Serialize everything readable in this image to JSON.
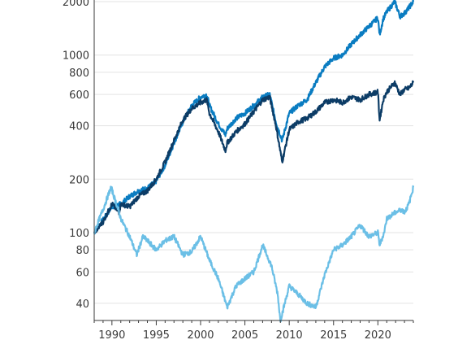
{
  "chart_data": {
    "type": "line",
    "title": "",
    "xlabel": "",
    "ylabel": "",
    "x_scale": "linear",
    "y_scale": "log",
    "xlim": [
      1988,
      2024
    ],
    "ylim": [
      32,
      2000
    ],
    "grid": "horizontal",
    "x_ticks": [
      1990,
      1995,
      2000,
      2005,
      2010,
      2015,
      2020
    ],
    "x_tick_labels": [
      "1990",
      "1995",
      "2000",
      "2005",
      "2010",
      "2015",
      "2020"
    ],
    "y_ticks": [
      40,
      60,
      80,
      100,
      200,
      400,
      600,
      800,
      1000,
      2000
    ],
    "y_tick_labels": [
      "40",
      "60",
      "80",
      "100",
      "200",
      "400",
      "600",
      "800",
      "1000",
      "2000"
    ],
    "series": [
      {
        "color": "#0a7cc1",
        "x": [
          1988,
          1989,
          1990,
          1991,
          1992,
          1993,
          1994,
          1995,
          1996,
          1997,
          1998,
          1999,
          2000,
          2000.7,
          2001,
          2002,
          2002.8,
          2003,
          2004,
          2005,
          2006,
          2007,
          2007.8,
          2008.5,
          2009.2,
          2010,
          2011,
          2012,
          2013,
          2014,
          2015,
          2016,
          2017,
          2018,
          2019,
          2020,
          2020.2,
          2020.6,
          2021,
          2021.9,
          2022.5,
          2023,
          2023.5,
          2024
        ],
        "values": [
          100,
          118,
          140,
          145,
          160,
          172,
          178,
          195,
          240,
          320,
          420,
          520,
          580,
          600,
          520,
          410,
          355,
          385,
          440,
          470,
          520,
          580,
          600,
          420,
          330,
          470,
          520,
          560,
          700,
          860,
          960,
          1000,
          1150,
          1300,
          1450,
          1620,
          1300,
          1600,
          1750,
          2000,
          1650,
          1720,
          1850,
          2000
        ]
      },
      {
        "color": "#0c3c66",
        "x": [
          1988,
          1989,
          1990,
          1990.8,
          1991,
          1992,
          1993,
          1994,
          1995,
          1996,
          1997,
          1998,
          1999,
          2000,
          2000.7,
          2001,
          2002,
          2002.8,
          2003,
          2004,
          2005,
          2006,
          2007,
          2007.8,
          2008.5,
          2009.2,
          2010,
          2011,
          2012,
          2013,
          2014,
          2015,
          2016,
          2017,
          2018,
          2019,
          2020,
          2020.2,
          2020.6,
          2021,
          2021.9,
          2022.5,
          2023,
          2023.5,
          2024
        ],
        "values": [
          100,
          115,
          145,
          130,
          145,
          140,
          160,
          172,
          200,
          250,
          330,
          430,
          500,
          540,
          560,
          470,
          370,
          290,
          320,
          370,
          410,
          480,
          560,
          580,
          400,
          250,
          380,
          420,
          440,
          480,
          540,
          560,
          540,
          580,
          560,
          600,
          620,
          430,
          560,
          620,
          700,
          600,
          640,
          650,
          700
        ]
      },
      {
        "color": "#6bbfe6",
        "x": [
          1988,
          1988.6,
          1989,
          1989.9,
          1990.5,
          1991,
          1992,
          1992.8,
          1993.5,
          1994,
          1995,
          1996,
          1997,
          1998,
          1999,
          2000,
          2001,
          2002,
          2003,
          2004,
          2005,
          2006,
          2007,
          2008,
          2008.7,
          2009,
          2010,
          2011,
          2012,
          2013,
          2014,
          2015,
          2016,
          2017,
          2018,
          2019,
          2020,
          2020.2,
          2020.7,
          2021,
          2022,
          2022.7,
          2023,
          2023.5,
          2024
        ],
        "values": [
          100,
          120,
          135,
          180,
          145,
          120,
          95,
          75,
          95,
          90,
          80,
          90,
          95,
          75,
          78,
          95,
          70,
          55,
          38,
          50,
          55,
          60,
          85,
          65,
          45,
          32,
          50,
          45,
          40,
          38,
          58,
          80,
          85,
          95,
          110,
          95,
          100,
          85,
          100,
          120,
          130,
          135,
          130,
          145,
          180
        ]
      }
    ]
  }
}
